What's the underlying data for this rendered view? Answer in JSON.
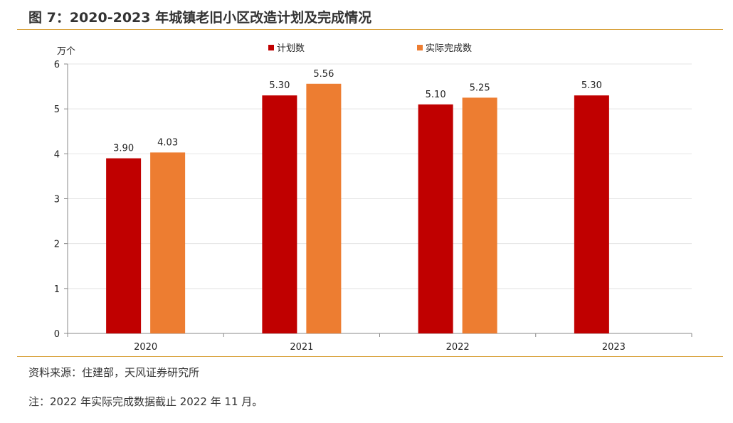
{
  "title": "图 7：2020-2023 年城镇老旧小区改造计划及完成情况",
  "footer": {
    "source": "资料来源：住建部，天风证券研究所",
    "note": "注：2022 年实际完成数据截止 2022 年 11 月。"
  },
  "chart_data": {
    "type": "bar",
    "unit_label": "万个",
    "categories": [
      "2020",
      "2021",
      "2022",
      "2023"
    ],
    "series": [
      {
        "name": "计划数",
        "values": [
          3.9,
          5.3,
          5.1,
          5.3
        ],
        "labels": [
          "3.90",
          "5.30",
          "5.10",
          "5.30"
        ],
        "color": "#c00000"
      },
      {
        "name": "实际完成数",
        "values": [
          4.03,
          5.56,
          5.25,
          null
        ],
        "labels": [
          "4.03",
          "5.56",
          "5.25",
          ""
        ],
        "color": "#ed7d31"
      }
    ],
    "y_ticks": [
      "0",
      "1",
      "2",
      "3",
      "4",
      "5",
      "6"
    ],
    "ylim": [
      0,
      6
    ],
    "grid": true,
    "legend_position": "top-center"
  }
}
